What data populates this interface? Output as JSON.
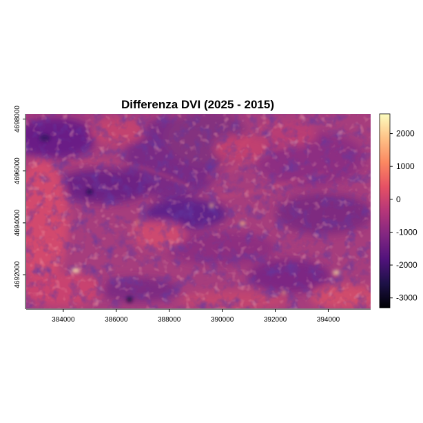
{
  "chart_data": {
    "type": "heatmap",
    "title": "Differenza DVI (2025 - 2015)",
    "xlabel": "",
    "ylabel": "",
    "x_ticks": [
      "384000",
      "386000",
      "388000",
      "390000",
      "392000",
      "394000"
    ],
    "y_ticks": [
      "4692000",
      "4694000",
      "4696000",
      "4698000"
    ],
    "x_range": [
      382600,
      395600
    ],
    "y_range": [
      4690700,
      4698200
    ],
    "colorbar": {
      "ticks": [
        "2000",
        "1000",
        "0",
        "-1000",
        "-2000",
        "-3000"
      ],
      "tick_values": [
        2000,
        1000,
        0,
        -1000,
        -2000,
        -3000
      ],
      "range": [
        -3300,
        2600
      ],
      "palette": "magma",
      "colors": [
        "#000004",
        "#1d1147",
        "#51127c",
        "#822681",
        "#b63679",
        "#e65164",
        "#fb8861",
        "#fec287",
        "#fcfdbf"
      ]
    },
    "grid": false,
    "legend_position": "right"
  }
}
